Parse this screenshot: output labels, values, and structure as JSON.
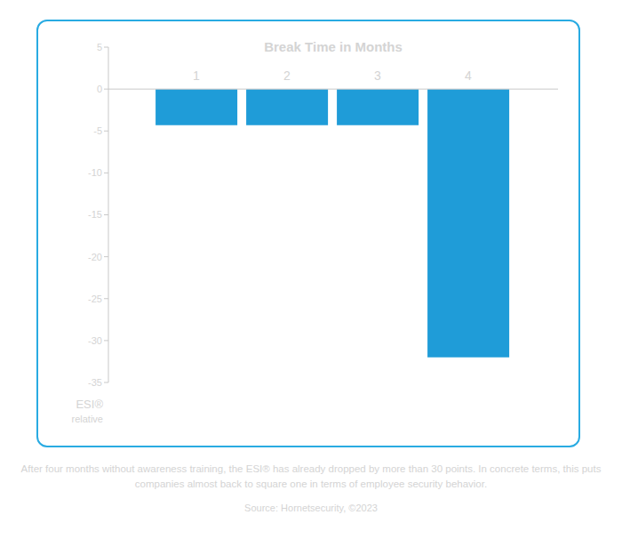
{
  "chart_data": {
    "type": "bar",
    "title": "Break Time in Months",
    "categories": [
      "1",
      "2",
      "3",
      "4"
    ],
    "values": [
      -4.3,
      -4.3,
      -4.3,
      -32
    ],
    "color": "#1f9cd8",
    "y_label": "ESI® relative",
    "ylim": [
      -35,
      5
    ],
    "yticks": [
      -35,
      -30,
      -25,
      -20,
      -15,
      -10,
      -5,
      0,
      5
    ],
    "grid": false,
    "caption": "After four months without awareness training, the ESI® has already dropped by more than 30 points. In concrete terms, this puts companies almost back to square one in terms of employee security behavior.",
    "source": "Source: Hornetsecurity, ©2023"
  }
}
